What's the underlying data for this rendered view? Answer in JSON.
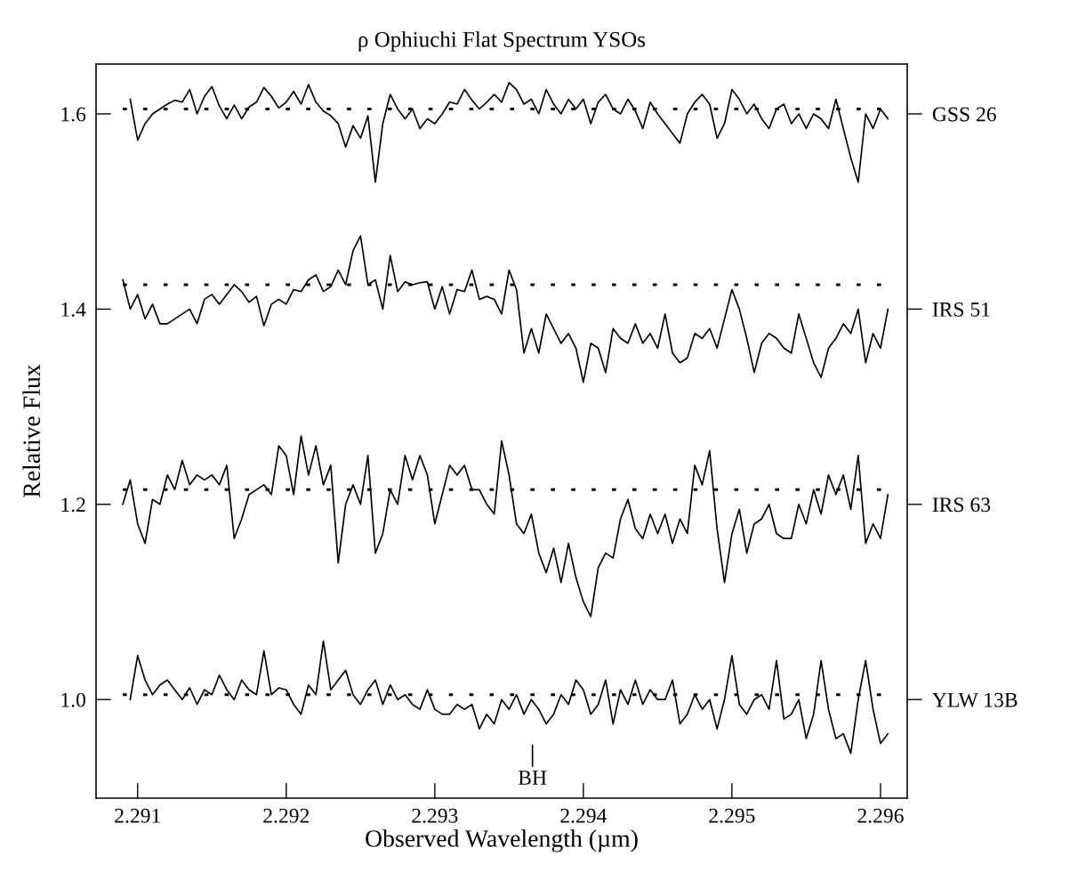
{
  "chart_data": {
    "type": "line",
    "title": "ρ Ophiuchi Flat Spectrum YSOs",
    "xlabel": "Observed Wavelength (µm)",
    "ylabel": "Relative Flux",
    "x": [
      2.2909,
      2.29095,
      2.291,
      2.29105,
      2.2911,
      2.29115,
      2.2912,
      2.29125,
      2.2913,
      2.29135,
      2.2914,
      2.29145,
      2.2915,
      2.29155,
      2.2916,
      2.29165,
      2.2917,
      2.29175,
      2.2918,
      2.29185,
      2.2919,
      2.29195,
      2.292,
      2.29205,
      2.2921,
      2.29215,
      2.2922,
      2.29225,
      2.2923,
      2.29235,
      2.2924,
      2.29245,
      2.2925,
      2.29255,
      2.2926,
      2.29265,
      2.2927,
      2.29275,
      2.2928,
      2.29285,
      2.2929,
      2.29295,
      2.293,
      2.29305,
      2.2931,
      2.29315,
      2.2932,
      2.29325,
      2.2933,
      2.29335,
      2.2934,
      2.29345,
      2.2935,
      2.29355,
      2.2936,
      2.29365,
      2.2937,
      2.29375,
      2.2938,
      2.29385,
      2.2939,
      2.29395,
      2.294,
      2.29405,
      2.2941,
      2.29415,
      2.2942,
      2.29425,
      2.2943,
      2.29435,
      2.2944,
      2.29445,
      2.2945,
      2.29455,
      2.2946,
      2.29465,
      2.2947,
      2.29475,
      2.2948,
      2.29485,
      2.2949,
      2.29495,
      2.295,
      2.29505,
      2.2951,
      2.29515,
      2.2952,
      2.29525,
      2.2953,
      2.29535,
      2.2954,
      2.29545,
      2.2955,
      2.29555,
      2.2956,
      2.29565,
      2.2957,
      2.29575,
      2.2958,
      2.29585,
      2.2959,
      2.29595,
      2.296,
      2.29605
    ],
    "series": [
      {
        "name": "GSS 26",
        "color": "#000000",
        "values": [
          null,
          1.615,
          1.573,
          1.59,
          1.6,
          1.605,
          1.61,
          1.614,
          1.612,
          1.625,
          1.6,
          1.618,
          1.628,
          1.608,
          1.595,
          1.609,
          1.595,
          1.607,
          1.612,
          1.627,
          1.618,
          1.606,
          1.612,
          1.623,
          1.61,
          1.63,
          1.612,
          1.603,
          1.598,
          1.59,
          1.566,
          1.588,
          1.575,
          1.598,
          1.53,
          1.59,
          1.62,
          1.605,
          1.595,
          1.605,
          1.585,
          1.595,
          1.59,
          1.6,
          1.612,
          1.61,
          1.625,
          1.614,
          1.605,
          1.612,
          1.62,
          1.612,
          1.632,
          1.625,
          1.61,
          1.615,
          1.6,
          1.625,
          1.61,
          1.6,
          1.615,
          1.605,
          1.615,
          1.59,
          1.612,
          1.62,
          1.605,
          1.6,
          1.615,
          1.603,
          1.585,
          1.612,
          1.6,
          1.59,
          1.58,
          1.57,
          1.6,
          1.612,
          1.62,
          1.61,
          1.575,
          1.59,
          1.625,
          1.615,
          1.6,
          1.61,
          1.595,
          1.585,
          1.605,
          1.61,
          1.59,
          1.6,
          1.585,
          1.6,
          1.595,
          1.585,
          1.615,
          1.585,
          1.555,
          1.53,
          1.6,
          1.585,
          1.605,
          1.595
        ]
      },
      {
        "name": "IRS 51",
        "color": "#000000",
        "values": [
          1.43,
          1.4,
          1.415,
          1.39,
          1.405,
          1.385,
          1.385,
          1.39,
          1.395,
          1.4,
          1.385,
          1.41,
          1.415,
          1.405,
          1.415,
          1.425,
          1.418,
          1.407,
          1.413,
          1.383,
          1.405,
          1.41,
          1.405,
          1.42,
          1.418,
          1.43,
          1.435,
          1.418,
          1.423,
          1.44,
          1.425,
          1.46,
          1.475,
          1.425,
          1.43,
          1.4,
          1.455,
          1.418,
          1.428,
          1.425,
          1.427,
          1.428,
          1.4,
          1.423,
          1.395,
          1.42,
          1.418,
          1.44,
          1.41,
          1.413,
          1.41,
          1.395,
          1.44,
          1.42,
          1.355,
          1.38,
          1.355,
          1.395,
          1.38,
          1.365,
          1.375,
          1.36,
          1.325,
          1.365,
          1.36,
          1.335,
          1.38,
          1.37,
          1.365,
          1.385,
          1.365,
          1.375,
          1.36,
          1.395,
          1.355,
          1.345,
          1.35,
          1.375,
          1.37,
          1.38,
          1.36,
          1.39,
          1.42,
          1.4,
          1.37,
          1.335,
          1.365,
          1.375,
          1.37,
          1.36,
          1.355,
          1.395,
          1.37,
          1.345,
          1.33,
          1.36,
          1.37,
          1.385,
          1.375,
          1.4,
          1.345,
          1.375,
          1.36,
          1.4
        ]
      },
      {
        "name": "IRS 63",
        "color": "#000000",
        "values": [
          1.2,
          1.225,
          1.18,
          1.16,
          1.205,
          1.2,
          1.23,
          1.215,
          1.245,
          1.22,
          1.23,
          1.225,
          1.23,
          1.22,
          1.24,
          1.165,
          1.185,
          1.21,
          1.215,
          1.22,
          1.21,
          1.26,
          1.25,
          1.21,
          1.27,
          1.23,
          1.26,
          1.22,
          1.24,
          1.14,
          1.2,
          1.22,
          1.2,
          1.25,
          1.15,
          1.17,
          1.215,
          1.2,
          1.25,
          1.225,
          1.25,
          1.23,
          1.18,
          1.21,
          1.24,
          1.23,
          1.24,
          1.215,
          1.215,
          1.2,
          1.19,
          1.265,
          1.23,
          1.18,
          1.17,
          1.19,
          1.15,
          1.13,
          1.155,
          1.12,
          1.16,
          1.125,
          1.1,
          1.085,
          1.135,
          1.15,
          1.145,
          1.185,
          1.205,
          1.175,
          1.165,
          1.19,
          1.17,
          1.19,
          1.16,
          1.185,
          1.17,
          1.24,
          1.22,
          1.255,
          1.175,
          1.12,
          1.17,
          1.195,
          1.15,
          1.18,
          1.185,
          1.2,
          1.17,
          1.165,
          1.165,
          1.2,
          1.18,
          1.215,
          1.19,
          1.23,
          1.21,
          1.23,
          1.195,
          1.25,
          1.16,
          1.18,
          1.165,
          1.21
        ]
      },
      {
        "name": "YLW 13B",
        "color": "#000000",
        "values": [
          null,
          1.0,
          1.045,
          1.02,
          1.005,
          1.015,
          1.02,
          1.01,
          1.0,
          1.012,
          0.995,
          1.01,
          1.005,
          1.025,
          1.01,
          1.0,
          1.02,
          1.01,
          1.005,
          1.05,
          1.005,
          1.012,
          1.01,
          0.995,
          0.985,
          1.015,
          1.005,
          1.06,
          1.01,
          1.02,
          1.03,
          1.005,
          0.995,
          1.01,
          1.02,
          0.995,
          1.015,
          1.0,
          1.005,
          0.995,
          0.99,
          1.01,
          0.99,
          0.985,
          0.985,
          0.995,
          0.99,
          0.995,
          0.97,
          0.985,
          0.975,
          1.0,
          0.99,
          1.005,
          0.985,
          1.0,
          0.99,
          0.975,
          0.985,
          1.005,
          0.995,
          1.02,
          1.01,
          0.985,
          0.995,
          1.02,
          0.975,
          1.01,
          0.995,
          1.02,
          0.995,
          1.01,
          1.0,
          1.0,
          1.02,
          0.975,
          0.985,
          1.005,
          0.99,
          1.0,
          0.97,
          1.0,
          1.045,
          0.995,
          0.985,
          1.0,
          1.005,
          0.99,
          1.04,
          0.98,
          0.985,
          1.0,
          0.96,
          0.985,
          1.04,
          0.99,
          0.96,
          0.965,
          0.945,
          1.0,
          1.04,
          0.99,
          0.955,
          0.965
        ]
      }
    ],
    "xlim": [
      2.29072,
      2.29618
    ],
    "xticks": [
      {
        "value": 2.291,
        "label": "2.291"
      },
      {
        "value": 2.292,
        "label": "2.292"
      },
      {
        "value": 2.293,
        "label": "2.293"
      },
      {
        "value": 2.294,
        "label": "2.294"
      },
      {
        "value": 2.295,
        "label": "2.295"
      },
      {
        "value": 2.296,
        "label": "2.296"
      }
    ],
    "ylim": [
      0.899,
      1.651
    ],
    "yticks": [
      {
        "value": 1.6,
        "label": "1.6"
      },
      {
        "value": 1.4,
        "label": "1.4"
      },
      {
        "value": 1.2,
        "label": "1.2"
      },
      {
        "value": 1.0,
        "label": "1.0"
      }
    ],
    "ref_lines": [
      {
        "axis": "y",
        "value": 1.605,
        "line_style": "dotted",
        "color": "#000000"
      },
      {
        "axis": "y",
        "value": 1.425,
        "line_style": "dotted",
        "color": "#000000"
      },
      {
        "axis": "y",
        "value": 1.215,
        "line_style": "dotted",
        "color": "#000000"
      },
      {
        "axis": "y",
        "value": 1.005,
        "line_style": "dotted",
        "color": "#000000"
      }
    ],
    "annotations": [
      "BH"
    ],
    "grid": false,
    "legend": "right",
    "marker": "none",
    "line_style": "solid"
  }
}
